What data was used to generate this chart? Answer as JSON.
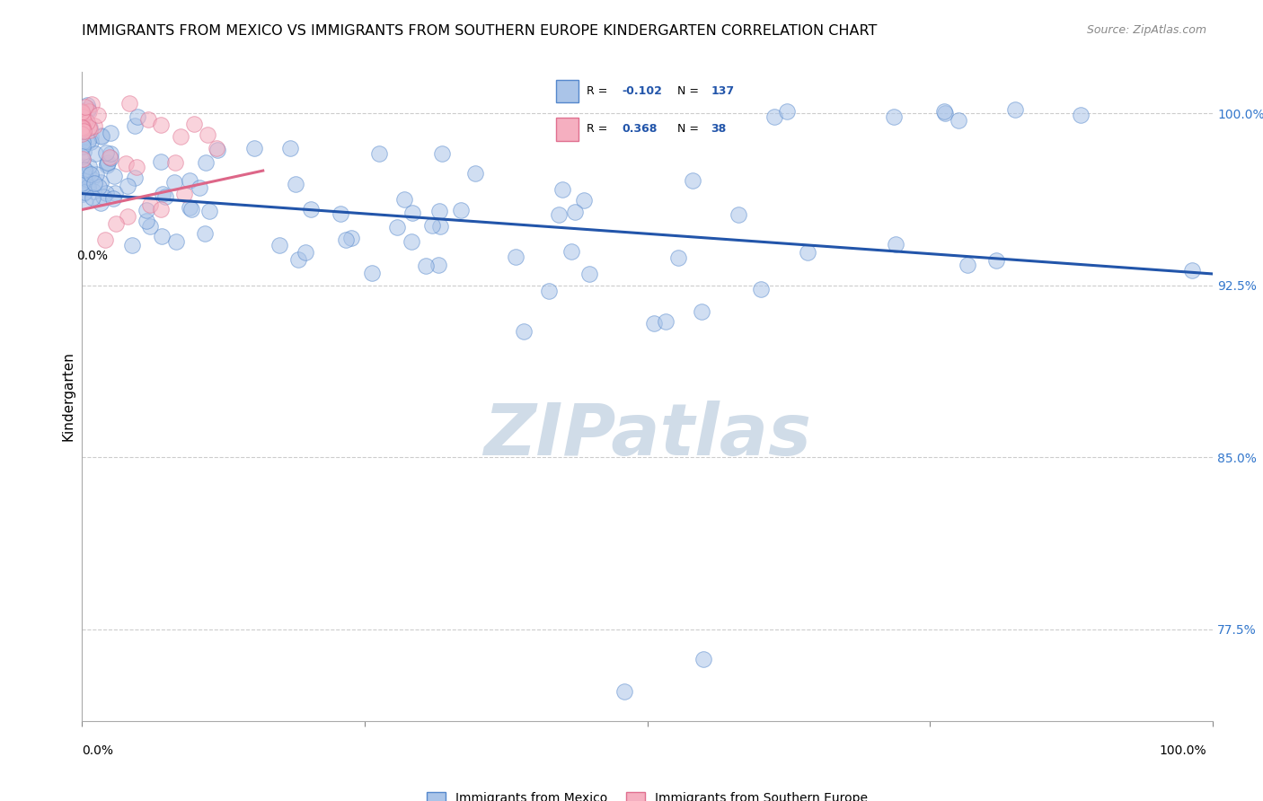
{
  "title": "IMMIGRANTS FROM MEXICO VS IMMIGRANTS FROM SOUTHERN EUROPE KINDERGARTEN CORRELATION CHART",
  "source": "Source: ZipAtlas.com",
  "ylabel": "Kindergarten",
  "R_blue": -0.102,
  "N_blue": 137,
  "R_pink": 0.368,
  "N_pink": 38,
  "blue_color": "#aac4e8",
  "pink_color": "#f5afc0",
  "blue_edge_color": "#5588cc",
  "pink_edge_color": "#e07090",
  "blue_line_color": "#2255aa",
  "pink_line_color": "#dd6688",
  "right_tick_color": "#3377cc",
  "background_color": "#ffffff",
  "watermark_color": "#d0dce8",
  "watermark_text": "ZIPatlas",
  "xlim": [
    0.0,
    1.0
  ],
  "ylim": [
    0.735,
    1.018
  ],
  "ytick_values": [
    0.775,
    0.85,
    0.925,
    1.0
  ],
  "ytick_labels": [
    "77.5%",
    "85.0%",
    "92.5%",
    "100.0%"
  ],
  "blue_trend_x": [
    0.0,
    1.0
  ],
  "blue_trend_y": [
    0.965,
    0.93
  ],
  "pink_trend_x": [
    0.0,
    0.16
  ],
  "pink_trend_y": [
    0.958,
    0.975
  ],
  "title_fontsize": 11.5,
  "source_fontsize": 9,
  "tick_fontsize": 10,
  "ylabel_fontsize": 11,
  "legend_fontsize": 10,
  "marker_size": 160,
  "marker_alpha": 0.55
}
